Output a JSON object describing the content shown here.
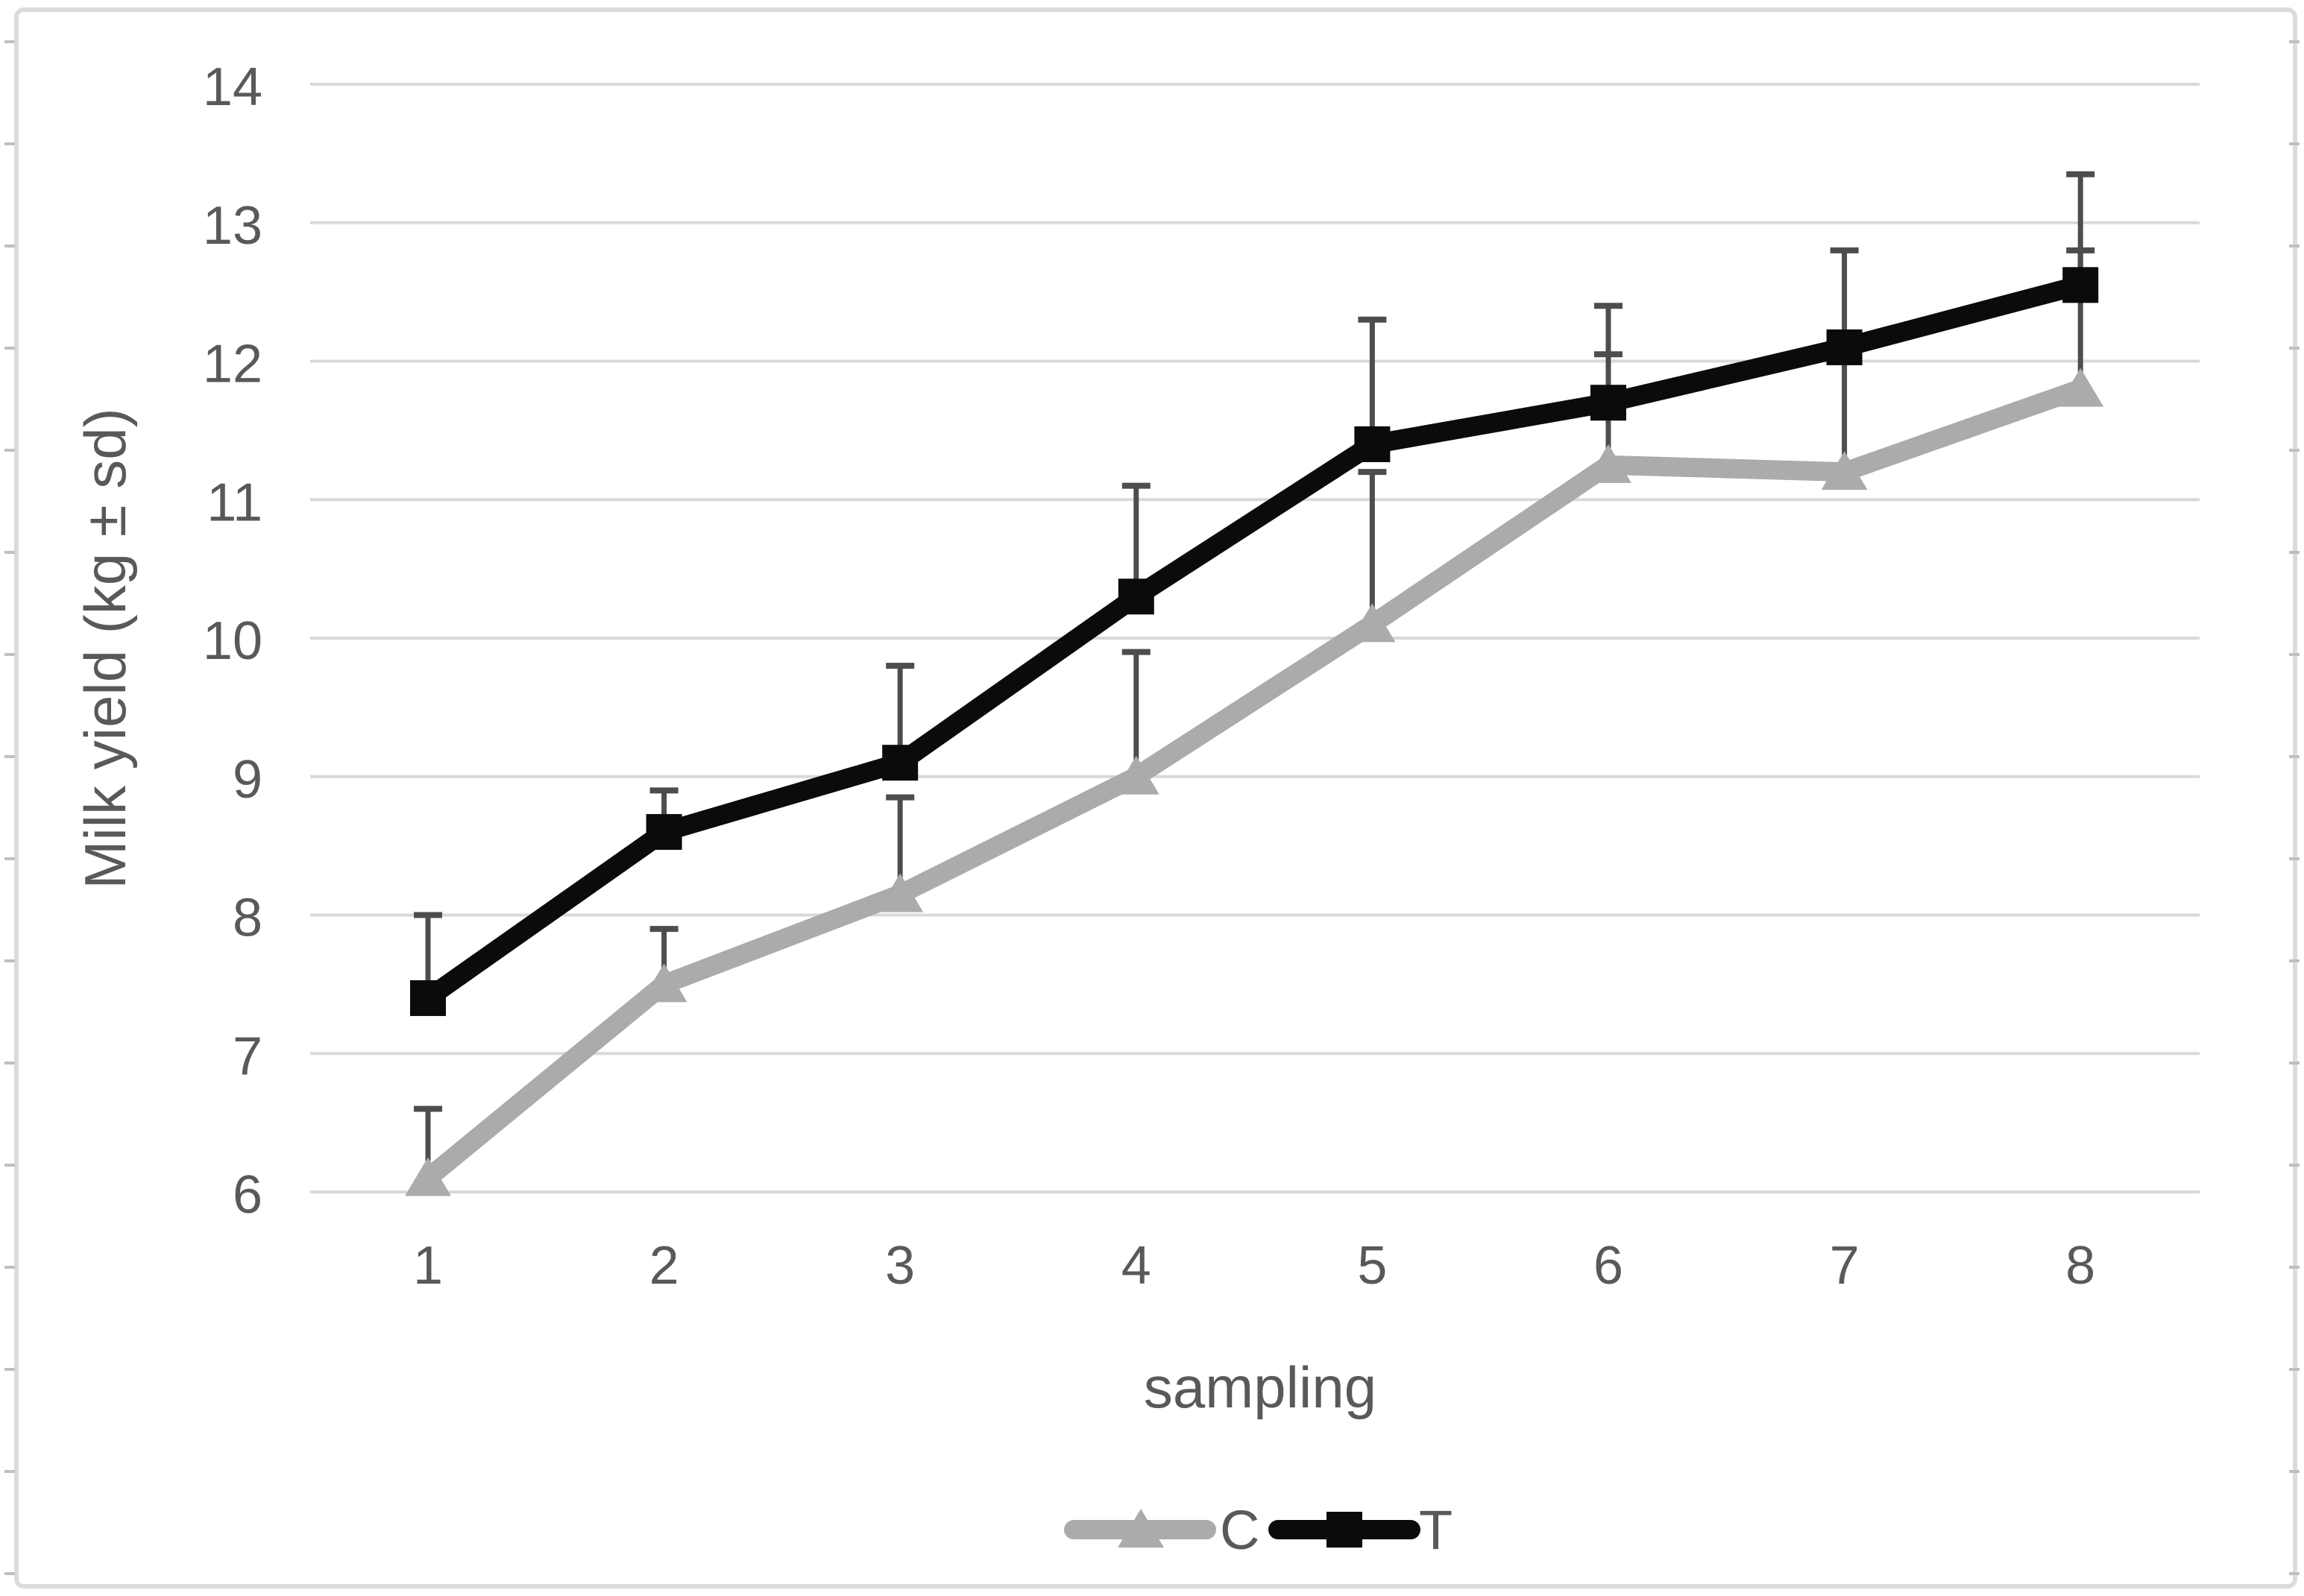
{
  "figure": {
    "y_axis_title": "Milk yield (kg ± sd)",
    "x_axis_title": "sampling",
    "legend": {
      "position": "bottom-center",
      "items": [
        {
          "label": "C",
          "marker": "triangle-up",
          "color": "#ababab"
        },
        {
          "label": "T",
          "marker": "square",
          "color": "#0b0b0b"
        }
      ]
    }
  },
  "chart_data": {
    "type": "line",
    "title": "",
    "xlabel": "sampling",
    "ylabel": "Milk yield (kg ± sd)",
    "categories": [
      "1",
      "2",
      "3",
      "4",
      "5",
      "6",
      "7",
      "8"
    ],
    "y_ticks": [
      6,
      7,
      8,
      9,
      10,
      11,
      12,
      13,
      14
    ],
    "ylim": [
      6,
      14
    ],
    "grid": "horizontal",
    "legend_position": "bottom-center",
    "error_bars": "upper-only standard deviation whiskers with end caps",
    "series": [
      {
        "name": "C",
        "marker": "triangle-up",
        "color": "#ababab",
        "values": [
          6.1,
          7.5,
          8.15,
          9.0,
          10.1,
          11.25,
          11.2,
          11.8
        ],
        "sd": [
          0.5,
          0.4,
          0.7,
          0.9,
          1.1,
          0.8,
          0.85,
          1.0
        ]
      },
      {
        "name": "T",
        "marker": "square",
        "color": "#0b0b0b",
        "values": [
          7.4,
          8.6,
          9.1,
          10.3,
          11.4,
          11.7,
          12.1,
          12.55
        ],
        "sd": [
          0.6,
          0.3,
          0.7,
          0.8,
          0.9,
          0.7,
          0.7,
          0.8
        ]
      }
    ]
  },
  "style": {
    "background": "#ffffff",
    "grid_color": "#d9d9d9",
    "text_color": "#595959",
    "error_bar_color": "#4d4d4d",
    "border_color": "#dbdbdb",
    "edge_tick_color": "#bfbfbf"
  }
}
